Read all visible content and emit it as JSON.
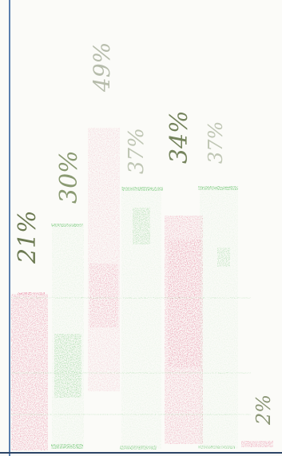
{
  "labels": {
    "lane1": "21%",
    "lane2": "30%",
    "lane3": "49%",
    "lane4": "37%",
    "lane5": "34%",
    "lane6": "37%",
    "lane7": "2%"
  },
  "colors": {
    "pink": "#e0527a",
    "green": "#44b54b",
    "axis_blue": "#5a7fae",
    "paper": "#fbfbf8"
  }
}
